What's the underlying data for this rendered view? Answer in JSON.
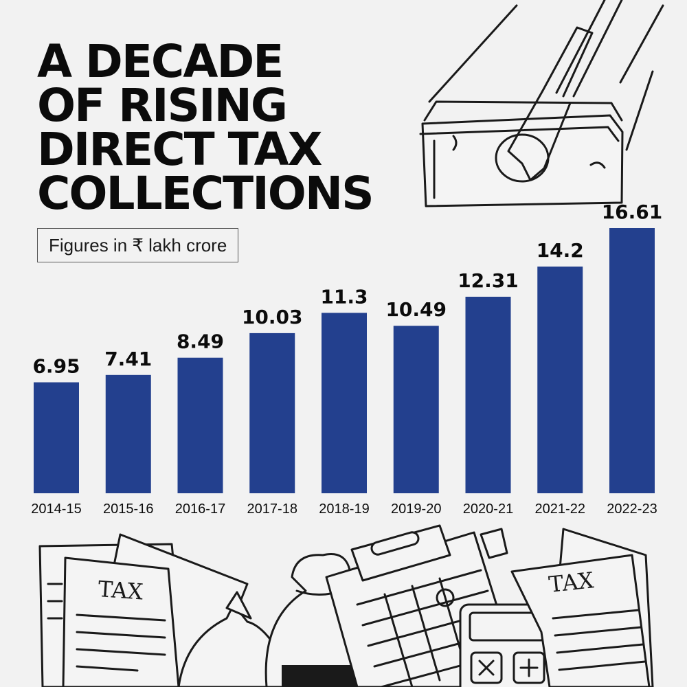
{
  "title_lines": [
    "A DECADE",
    "OF RISING",
    "DIRECT TAX",
    "COLLECTIONS"
  ],
  "subtitle": "Figures in ₹ lakh crore",
  "colors": {
    "bar": "#23408e",
    "background": "#f2f2f2",
    "text": "#0b0b0b"
  },
  "illustration": {
    "top_icon": "money-wallet-icon",
    "bottom_icons": [
      "tax-document-icon",
      "money-bag-icon",
      "clipboard-calendar-icon",
      "calculator-icon",
      "piggy-bank-icon"
    ],
    "paper_label": "TAX"
  },
  "chart_data": {
    "type": "bar",
    "title": "A DECADE OF RISING DIRECT TAX COLLECTIONS",
    "subtitle": "Figures in ₹ lakh crore",
    "categories": [
      "2014-15",
      "2015-16",
      "2016-17",
      "2017-18",
      "2018-19",
      "2019-20",
      "2020-21",
      "2021-22",
      "2022-23"
    ],
    "values": [
      6.95,
      7.41,
      8.49,
      10.03,
      11.3,
      10.49,
      12.31,
      14.2,
      16.61
    ],
    "value_labels": [
      "6.95",
      "7.41",
      "8.49",
      "10.03",
      "11.3",
      "10.49",
      "12.31",
      "14.2",
      "16.61"
    ],
    "xlabel": "",
    "ylabel": "",
    "ylim": [
      0,
      16.61
    ],
    "grid": false,
    "legend": "none"
  }
}
